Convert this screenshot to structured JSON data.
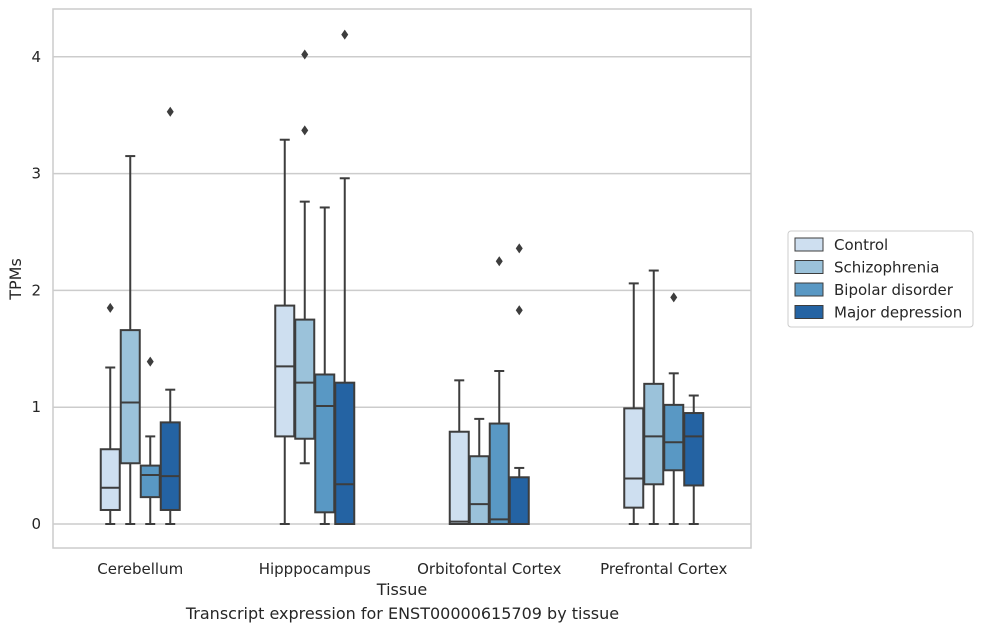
{
  "chart_data": {
    "type": "box",
    "xlabel": "Tissue",
    "ylabel": "TPMs",
    "caption": "Transcript expression for ENST00000615709 by tissue",
    "categories": [
      "Cerebellum",
      "Hipppocampus",
      "Orbitofontal Cortex",
      "Prefrontal Cortex"
    ],
    "ylim": [
      -0.2,
      4.4
    ],
    "yticks": [
      0,
      1,
      2,
      3,
      4
    ],
    "grid": "horizontal",
    "legend_position": "right",
    "series": [
      {
        "name": "Control",
        "color": "#cedff0",
        "boxes": [
          {
            "whisker_low": 0,
            "q1": 0.12,
            "median": 0.31,
            "q3": 0.64,
            "whisker_high": 1.34,
            "outliers": [
              1.85
            ]
          },
          {
            "whisker_low": 0,
            "q1": 0.75,
            "median": 1.35,
            "q3": 1.87,
            "whisker_high": 3.29,
            "outliers": []
          },
          {
            "whisker_low": 0,
            "q1": 0.0,
            "median": 0.02,
            "q3": 0.79,
            "whisker_high": 1.23,
            "outliers": []
          },
          {
            "whisker_low": 0,
            "q1": 0.14,
            "median": 0.39,
            "q3": 0.99,
            "whisker_high": 2.06,
            "outliers": []
          }
        ]
      },
      {
        "name": "Schizophrenia",
        "color": "#9bc2da",
        "boxes": [
          {
            "whisker_low": 0,
            "q1": 0.52,
            "median": 1.04,
            "q3": 1.66,
            "whisker_high": 3.15,
            "outliers": []
          },
          {
            "whisker_low": 0.52,
            "q1": 0.73,
            "median": 1.21,
            "q3": 1.75,
            "whisker_high": 2.76,
            "outliers": [
              3.37,
              4.02
            ]
          },
          {
            "whisker_low": 0,
            "q1": 0.0,
            "median": 0.17,
            "q3": 0.58,
            "whisker_high": 0.9,
            "outliers": []
          },
          {
            "whisker_low": 0,
            "q1": 0.34,
            "median": 0.75,
            "q3": 1.2,
            "whisker_high": 2.17,
            "outliers": []
          }
        ]
      },
      {
        "name": "Bipolar disorder",
        "color": "#5998c4",
        "boxes": [
          {
            "whisker_low": 0,
            "q1": 0.23,
            "median": 0.42,
            "q3": 0.5,
            "whisker_high": 0.75,
            "outliers": [
              1.39
            ]
          },
          {
            "whisker_low": 0,
            "q1": 0.1,
            "median": 1.01,
            "q3": 1.28,
            "whisker_high": 2.71,
            "outliers": []
          },
          {
            "whisker_low": 0,
            "q1": 0.0,
            "median": 0.04,
            "q3": 0.86,
            "whisker_high": 1.31,
            "outliers": [
              2.25
            ]
          },
          {
            "whisker_low": 0,
            "q1": 0.46,
            "median": 0.7,
            "q3": 1.02,
            "whisker_high": 1.29,
            "outliers": [
              1.94
            ]
          }
        ]
      },
      {
        "name": "Major depression",
        "color": "#2463a3",
        "boxes": [
          {
            "whisker_low": 0,
            "q1": 0.12,
            "median": 0.41,
            "q3": 0.87,
            "whisker_high": 1.15,
            "outliers": [
              3.53
            ]
          },
          {
            "whisker_low": 0,
            "q1": 0.0,
            "median": 0.34,
            "q3": 1.21,
            "whisker_high": 2.96,
            "outliers": [
              4.19
            ]
          },
          {
            "whisker_low": 0,
            "q1": 0.0,
            "median": 0.0,
            "q3": 0.4,
            "whisker_high": 0.48,
            "outliers": [
              1.83,
              2.36
            ]
          },
          {
            "whisker_low": 0,
            "q1": 0.33,
            "median": 0.75,
            "q3": 0.95,
            "whisker_high": 1.1,
            "outliers": []
          }
        ]
      }
    ]
  }
}
